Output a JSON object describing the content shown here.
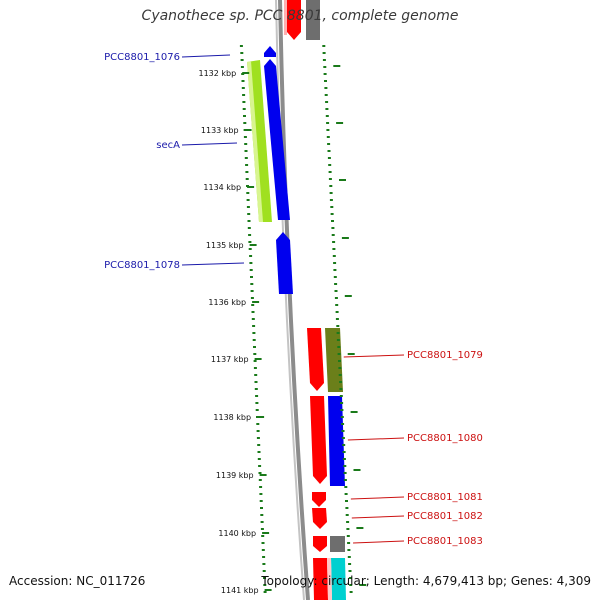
{
  "title": "Cyanothece sp. PCC 8801, complete genome",
  "footer": {
    "accession": "Accession: NC_011726",
    "summary": "Topology: circular; Length: 4,679,413 bp; Genes: 4,309"
  },
  "map": {
    "ticks": [
      "1132 kbp",
      "1133 kbp",
      "1134 kbp",
      "1135 kbp",
      "1136 kbp",
      "1137 kbp",
      "1138 kbp",
      "1139 kbp",
      "1140 kbp",
      "1141 kbp"
    ],
    "labels_left": [
      "PCC8801_1076",
      "secA",
      "PCC8801_1078"
    ],
    "labels_right": [
      "PCC8801_1079",
      "PCC8801_1080",
      "PCC8801_1081",
      "PCC8801_1082",
      "PCC8801_1083"
    ]
  },
  "colors": {
    "left_label": "#1a1aaa",
    "right_label": "#cc1111",
    "tick_dots": "#1a7a1a",
    "backbone": "#8c8c8c",
    "red": "#ff0000",
    "blue": "#0000ee",
    "lime": "#a0e020",
    "olive": "#6b7f1a",
    "gray": "#6e6e6e",
    "cyan": "#00d0d0"
  }
}
